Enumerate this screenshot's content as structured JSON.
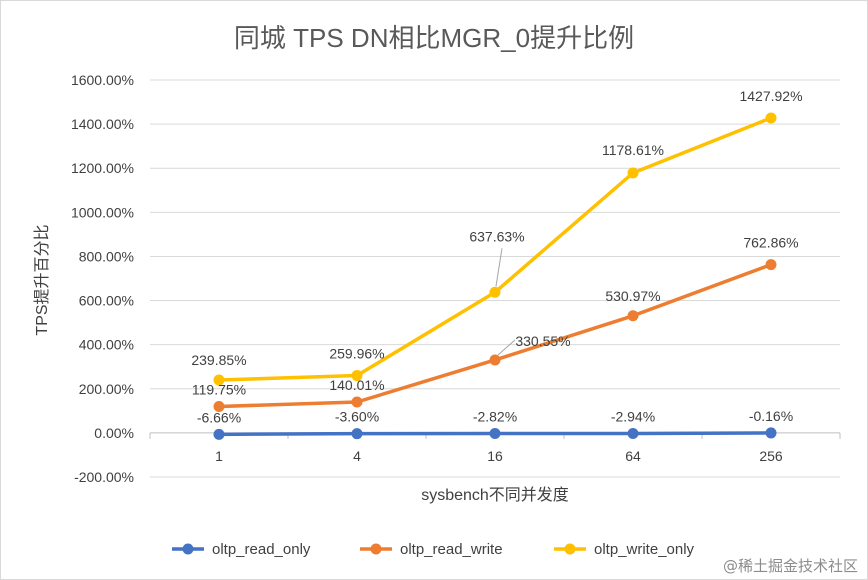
{
  "chart_data": {
    "type": "line",
    "title": "同城 TPS DN相比MGR_0提升比例",
    "xlabel": "sysbench不同并发度",
    "ylabel": "TPS提升百分比",
    "categories": [
      "1",
      "4",
      "16",
      "64",
      "256"
    ],
    "ylim": [
      -200,
      1600
    ],
    "yticks": [
      -200,
      0,
      200,
      400,
      600,
      800,
      1000,
      1200,
      1400,
      1600
    ],
    "ytick_labels": [
      "-200.00%",
      "0.00%",
      "200.00%",
      "400.00%",
      "600.00%",
      "800.00%",
      "1000.00%",
      "1200.00%",
      "1400.00%",
      "1600.00%"
    ],
    "grid": true,
    "legend_position": "bottom",
    "series": [
      {
        "name": "oltp_read_only",
        "color": "#4472c4",
        "values": [
          -6.66,
          -3.6,
          -2.82,
          -2.94,
          -0.16
        ],
        "labels": [
          "-6.66%",
          "-3.60%",
          "-2.82%",
          "-2.94%",
          "-0.16%"
        ]
      },
      {
        "name": "oltp_read_write",
        "color": "#ed7d31",
        "values": [
          119.75,
          140.01,
          330.55,
          530.97,
          762.86
        ],
        "labels": [
          "119.75%",
          "140.01%",
          "330.55%",
          "530.97%",
          "762.86%"
        ]
      },
      {
        "name": "oltp_write_only",
        "color": "#ffc000",
        "values": [
          239.85,
          259.96,
          637.63,
          1178.61,
          1427.92
        ],
        "labels": [
          "239.85%",
          "259.96%",
          "637.63%",
          "1178.61%",
          "1427.92%"
        ]
      }
    ]
  },
  "watermark": {
    "text": "@稀土掘金技术社区"
  }
}
